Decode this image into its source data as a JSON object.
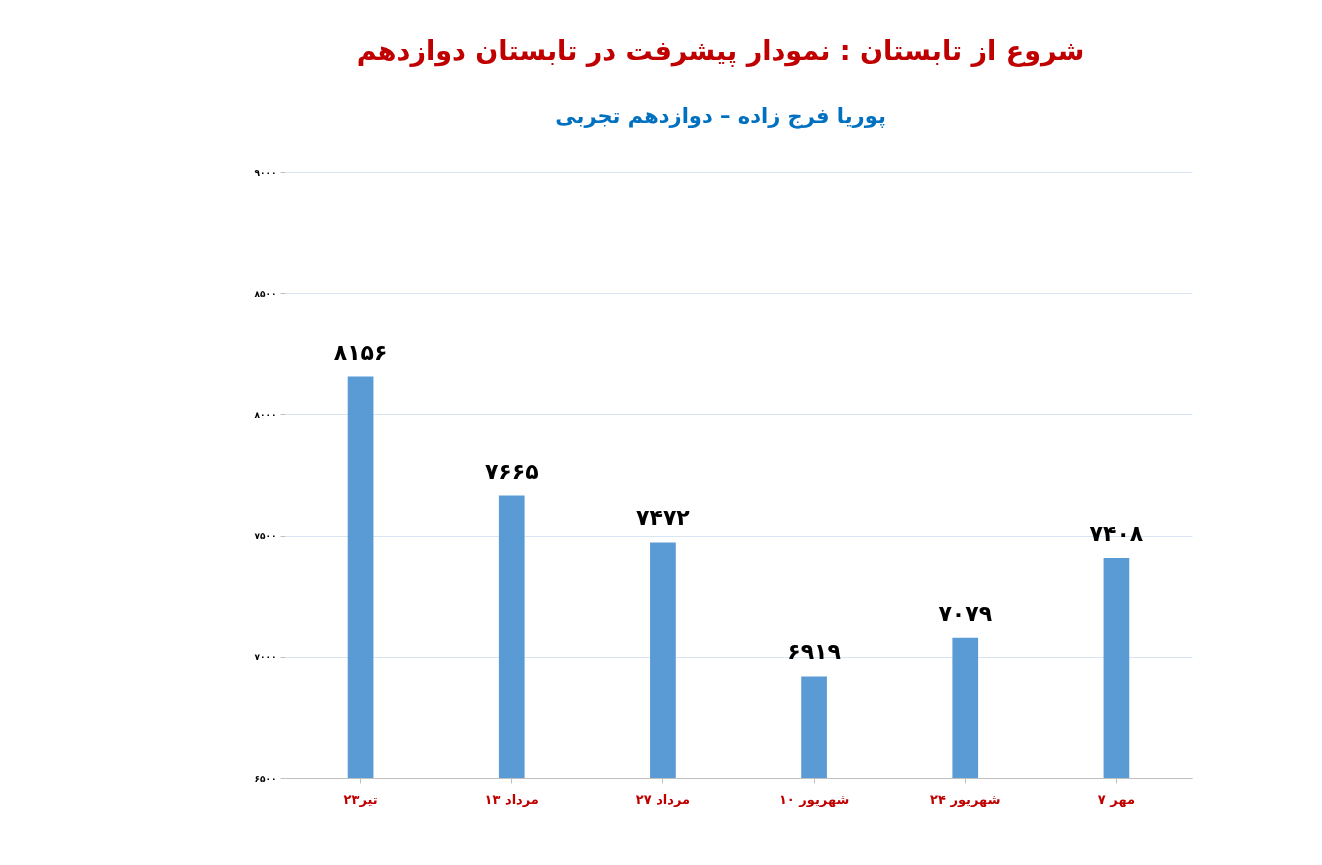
{
  "chart_data": {
    "type": "bar",
    "title": "شروع از تابستان : نمودار پیشرفت در تابستان دوازدهم",
    "subtitle": "پوریا فرج زاده – دوازدهم تجربی",
    "categories": [
      "۲۳تیر",
      "۱۳ مرداد",
      "۲۷ مرداد",
      "۱۰ شهریور",
      "۲۴ شهریور",
      "۷ مهر"
    ],
    "values": [
      8156,
      7665,
      7472,
      6919,
      7079,
      7408
    ],
    "value_labels": [
      "۸۱۵۶",
      "۷۶۶۵",
      "۷۴۷۲",
      "۶۹۱۹",
      "۷۰۷۹",
      "۷۴۰۸"
    ],
    "color": "#5b9bd5",
    "ylim": [
      6500,
      9000
    ],
    "yticks": [
      {
        "value": 6500,
        "label": "۶۵۰۰"
      },
      {
        "value": 7000,
        "label": "۷۰۰۰"
      },
      {
        "value": 7500,
        "label": "۷۵۰۰"
      },
      {
        "value": 8000,
        "label": "۸۰۰۰"
      },
      {
        "value": 8500,
        "label": "۸۵۰۰"
      },
      {
        "value": 9000,
        "label": "۹۰۰۰"
      }
    ],
    "grid": "y"
  }
}
